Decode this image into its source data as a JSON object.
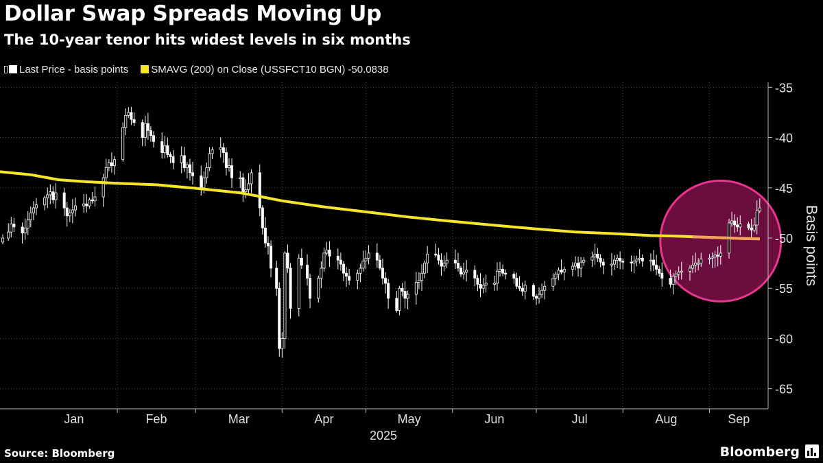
{
  "header": {
    "title": "Dollar Swap Spreads Moving Up",
    "subtitle": "The 10-year tenor hits widest levels in six months"
  },
  "legend": {
    "last_price_label": "Last Price - basis points",
    "sma_label": "SMAVG (200)  on Close (USSFCT10 BGN)",
    "sma_value": "-50.0838"
  },
  "footer": {
    "source": "Source: Bloomberg",
    "brand": "Bloomberg"
  },
  "colors": {
    "background": "#000000",
    "candle": "#ffffff",
    "sma_line": "#f5e62a",
    "sma_highlight": "#f2a15e",
    "circle_stroke": "#e8358e",
    "circle_fill": "#6b0e3e",
    "grid": "#4a4a4a",
    "axis_text": "#e0e0e0"
  },
  "chart_data": {
    "type": "candlestick",
    "title": "Dollar Swap Spreads Moving Up",
    "subtitle": "The 10-year tenor hits widest levels in six months",
    "ylabel": "Basis points",
    "xlabel": "2025",
    "ylim": [
      -67,
      -34.5
    ],
    "yticks": [
      -35,
      -40,
      -45,
      -50,
      -55,
      -60,
      -65
    ],
    "x_range_days": [
      -11,
      264
    ],
    "months": [
      {
        "label": "Jan",
        "start": 0
      },
      {
        "label": "Feb",
        "start": 31
      },
      {
        "label": "Mar",
        "start": 59
      },
      {
        "label": "Apr",
        "start": 90
      },
      {
        "label": "May",
        "start": 120
      },
      {
        "label": "Jun",
        "start": 151
      },
      {
        "label": "Jul",
        "start": 181
      },
      {
        "label": "Aug",
        "start": 212
      },
      {
        "label": "Sep",
        "start": 243
      }
    ],
    "year_label": "2025",
    "series": [
      {
        "name": "Last Price - basis points",
        "kind": "candlestick",
        "day_close_pairs": [
          [
            -10,
            -50
          ],
          [
            -8,
            -49.4
          ],
          [
            -7,
            -48.6
          ],
          [
            -6,
            -48.9
          ],
          [
            -3,
            -49.5
          ],
          [
            -2,
            -49
          ],
          [
            -1,
            -48.2
          ],
          [
            0,
            -47.5
          ],
          [
            1,
            -47
          ],
          [
            2,
            -46.7
          ],
          [
            5,
            -46
          ],
          [
            6,
            -45.7
          ],
          [
            7,
            -45.4
          ],
          [
            8,
            -46.2
          ],
          [
            9,
            -45.5
          ],
          [
            12,
            -47
          ],
          [
            13,
            -47.8
          ],
          [
            14,
            -47.5
          ],
          [
            15,
            -47.2
          ],
          [
            16,
            -46.8
          ],
          [
            19,
            -46.6
          ],
          [
            20,
            -46.8
          ],
          [
            21,
            -46.2
          ],
          [
            22,
            -46.3
          ],
          [
            23,
            -45.9
          ],
          [
            26,
            -44
          ],
          [
            27,
            -43
          ],
          [
            28,
            -42.5
          ],
          [
            29,
            -42.8
          ],
          [
            30,
            -42.2
          ],
          [
            33,
            -39
          ],
          [
            34,
            -37.8
          ],
          [
            35,
            -37.5
          ],
          [
            36,
            -38.2
          ],
          [
            37,
            -38.5
          ],
          [
            40,
            -40
          ],
          [
            41,
            -38.6
          ],
          [
            42,
            -39.3
          ],
          [
            43,
            -39.8
          ],
          [
            44,
            -40.4
          ],
          [
            47,
            -41.5
          ],
          [
            48,
            -40.8
          ],
          [
            49,
            -41.7
          ],
          [
            50,
            -41.9
          ],
          [
            51,
            -42.5
          ],
          [
            54,
            -41.8
          ],
          [
            55,
            -43
          ],
          [
            56,
            -42.7
          ],
          [
            57,
            -43.5
          ],
          [
            58,
            -43.8
          ],
          [
            61,
            -45
          ],
          [
            62,
            -44
          ],
          [
            63,
            -43
          ],
          [
            64,
            -41.6
          ],
          [
            65,
            -41.2
          ],
          [
            68,
            -41
          ],
          [
            69,
            -41.5
          ],
          [
            70,
            -43
          ],
          [
            71,
            -42.8
          ],
          [
            72,
            -44
          ],
          [
            75,
            -44
          ],
          [
            76,
            -45.4
          ],
          [
            77,
            -45.2
          ],
          [
            78,
            -44.6
          ],
          [
            79,
            -43.5
          ],
          [
            82,
            -47
          ],
          [
            83,
            -49
          ],
          [
            84,
            -50.5
          ],
          [
            85,
            -50.8
          ],
          [
            86,
            -53
          ],
          [
            88,
            -55
          ],
          [
            89,
            -61
          ],
          [
            90,
            -60
          ],
          [
            91,
            -51.5
          ],
          [
            92,
            -53
          ],
          [
            93,
            -57
          ],
          [
            96,
            -52
          ],
          [
            97,
            -52.7
          ],
          [
            99,
            -54
          ],
          [
            100,
            -56
          ],
          [
            103,
            -54
          ],
          [
            104,
            -53
          ],
          [
            105,
            -51.5
          ],
          [
            106,
            -51.2
          ],
          [
            107,
            -51.8
          ],
          [
            110,
            -52.2
          ],
          [
            111,
            -52.6
          ],
          [
            112,
            -53.5
          ],
          [
            113,
            -53.8
          ],
          [
            114,
            -54.2
          ],
          [
            117,
            -53.5
          ],
          [
            118,
            -53
          ],
          [
            119,
            -52.3
          ],
          [
            120,
            -52
          ],
          [
            121,
            -51.5
          ],
          [
            124,
            -52.2
          ],
          [
            125,
            -53
          ],
          [
            126,
            -54
          ],
          [
            127,
            -54.5
          ],
          [
            128,
            -56
          ],
          [
            131,
            -57.2
          ],
          [
            132,
            -55
          ],
          [
            133,
            -55.3
          ],
          [
            134,
            -56
          ],
          [
            135,
            -55.6
          ],
          [
            138,
            -54.4
          ],
          [
            139,
            -54.2
          ],
          [
            140,
            -53.5
          ],
          [
            141,
            -52.5
          ],
          [
            142,
            -51.6
          ],
          [
            145,
            -51.7
          ],
          [
            146,
            -52.2
          ],
          [
            147,
            -52.8
          ],
          [
            148,
            -52.5
          ],
          [
            149,
            -52.2
          ],
          [
            152,
            -52.5
          ],
          [
            153,
            -53
          ],
          [
            154,
            -53.6
          ],
          [
            155,
            -53.4
          ],
          [
            156,
            -53.2
          ],
          [
            159,
            -54
          ],
          [
            160,
            -54.6
          ],
          [
            161,
            -55
          ],
          [
            162,
            -54.7
          ],
          [
            163,
            -54.5
          ],
          [
            166,
            -54.5
          ],
          [
            167,
            -53.3
          ],
          [
            168,
            -53.1
          ],
          [
            169,
            -53.5
          ],
          [
            170,
            -53.6
          ],
          [
            173,
            -54
          ],
          [
            174,
            -54.8
          ],
          [
            175,
            -55
          ],
          [
            176,
            -55.3
          ],
          [
            177,
            -54.7
          ],
          [
            180,
            -55.8
          ],
          [
            181,
            -56
          ],
          [
            182,
            -55.6
          ],
          [
            183,
            -55.2
          ],
          [
            184,
            -54.8
          ],
          [
            187,
            -54
          ],
          [
            188,
            -53.6
          ],
          [
            189,
            -53.2
          ],
          [
            190,
            -53.4
          ],
          [
            191,
            -53.1
          ],
          [
            194,
            -52.8
          ],
          [
            195,
            -52.5
          ],
          [
            196,
            -53
          ],
          [
            197,
            -52.4
          ],
          [
            198,
            -52.2
          ],
          [
            201,
            -51.9
          ],
          [
            202,
            -51.6
          ],
          [
            203,
            -52
          ],
          [
            204,
            -52.4
          ],
          [
            205,
            -52.7
          ],
          [
            208,
            -52.6
          ],
          [
            209,
            -52.2
          ],
          [
            210,
            -52
          ],
          [
            211,
            -52.3
          ],
          [
            212,
            -52.4
          ],
          [
            215,
            -52.5
          ],
          [
            216,
            -52.3
          ],
          [
            217,
            -52.1
          ],
          [
            218,
            -52
          ],
          [
            219,
            -52.3
          ],
          [
            222,
            -52.2
          ],
          [
            223,
            -52.7
          ],
          [
            224,
            -53.1
          ],
          [
            225,
            -53.5
          ],
          [
            226,
            -54
          ],
          [
            229,
            -54.6
          ],
          [
            230,
            -53.8
          ],
          [
            231,
            -53.6
          ],
          [
            232,
            -53.4
          ],
          [
            233,
            -53.3
          ],
          [
            236,
            -53
          ],
          [
            237,
            -52.7
          ],
          [
            238,
            -52.5
          ],
          [
            239,
            -52.5
          ],
          [
            240,
            -52.1
          ],
          [
            243,
            -52
          ],
          [
            244,
            -51.9
          ],
          [
            245,
            -51.7
          ],
          [
            246,
            -51.8
          ],
          [
            247,
            -51.5
          ],
          [
            250,
            -48.5
          ],
          [
            251,
            -48.3
          ],
          [
            252,
            -48.7
          ],
          [
            253,
            -48.9
          ],
          [
            254,
            -48.6
          ],
          [
            257,
            -49
          ],
          [
            258,
            -49.2
          ],
          [
            259,
            -48.7
          ],
          [
            260,
            -47.3
          ],
          [
            261,
            -47
          ]
        ]
      },
      {
        "name": "SMAVG (200) on Close (USSFCT10 BGN)",
        "kind": "line",
        "x_days": [
          -11,
          0,
          10,
          20,
          31,
          45,
          59,
          75,
          80,
          90,
          105,
          120,
          135,
          151,
          165,
          181,
          195,
          212,
          222,
          230,
          240,
          250,
          255,
          261
        ],
        "y": [
          -43.4,
          -43.7,
          -44.2,
          -44.4,
          -44.55,
          -44.7,
          -45.05,
          -45.5,
          -45.75,
          -46.3,
          -46.9,
          -47.4,
          -47.9,
          -48.35,
          -48.7,
          -49.1,
          -49.4,
          -49.6,
          -49.75,
          -49.8,
          -49.9,
          -50,
          -50.05,
          -50.08
        ]
      }
    ],
    "annotations": [
      {
        "type": "circle",
        "center_day": 247,
        "center_value": -50.3,
        "note": "highlighted recent period"
      }
    ]
  }
}
